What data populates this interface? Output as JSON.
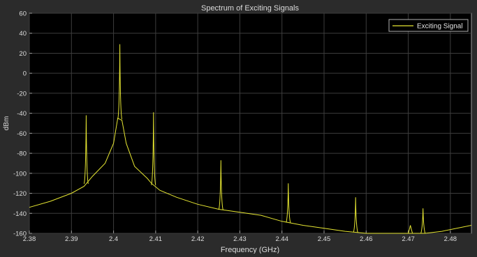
{
  "chart_data": {
    "type": "line",
    "title": "Spectrum of Exciting Signals",
    "xlabel": "Frequency (GHz)",
    "ylabel": "dBm",
    "xlim": [
      2.38,
      2.485
    ],
    "ylim": [
      -160,
      60
    ],
    "xticks": [
      "2.38",
      "2.39",
      "2.4",
      "2.41",
      "2.42",
      "2.43",
      "2.44",
      "2.45",
      "2.46",
      "2.47",
      "2.48"
    ],
    "yticks": [
      "60",
      "40",
      "20",
      "0",
      "-20",
      "-40",
      "-60",
      "-80",
      "-100",
      "-120",
      "-140",
      "-160"
    ],
    "grid": true,
    "legend_position": "top-right",
    "series": [
      {
        "name": "Exciting Signal",
        "color": "#e6e632",
        "peaks": [
          {
            "x": 2.3935,
            "y": -42
          },
          {
            "x": 2.4015,
            "y": 29
          },
          {
            "x": 2.4095,
            "y": -39
          },
          {
            "x": 2.4255,
            "y": -87
          },
          {
            "x": 2.4415,
            "y": -110
          },
          {
            "x": 2.4575,
            "y": -124
          },
          {
            "x": 2.4705,
            "y": -152
          },
          {
            "x": 2.4735,
            "y": -135
          }
        ],
        "x": [
          2.38,
          2.385,
          2.39,
          2.393,
          2.395,
          2.398,
          2.4,
          2.401,
          2.402,
          2.403,
          2.405,
          2.408,
          2.409,
          2.411,
          2.415,
          2.42,
          2.425,
          2.43,
          2.435,
          2.44,
          2.445,
          2.45,
          2.455,
          2.46,
          2.465,
          2.47,
          2.474,
          2.478,
          2.485
        ],
        "y": [
          -134,
          -128,
          -120,
          -113,
          -103,
          -90,
          -70,
          -45,
          -47,
          -70,
          -93,
          -105,
          -110,
          -117,
          -124,
          -131,
          -136,
          -139,
          -142,
          -148,
          -152,
          -155,
          -158,
          -160,
          -160,
          -160,
          -160,
          -158,
          -152
        ]
      }
    ]
  }
}
